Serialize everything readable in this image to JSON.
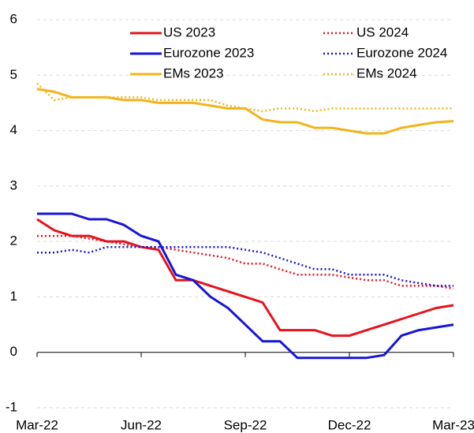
{
  "chart_data": {
    "type": "line",
    "categories": [
      "Mar-22",
      null,
      null,
      null,
      null,
      null,
      "Jun-22",
      null,
      null,
      null,
      null,
      null,
      "Sep-22",
      null,
      null,
      null,
      null,
      null,
      "Dec-22",
      null,
      null,
      null,
      null,
      null,
      "Mar-23"
    ],
    "series": [
      {
        "name": "US 2023",
        "color": "#e5131b",
        "line_style": "solid",
        "values": [
          2.4,
          2.2,
          2.1,
          2.1,
          2.0,
          2.0,
          1.9,
          1.85,
          1.3,
          1.3,
          1.2,
          1.1,
          1.0,
          0.9,
          0.4,
          0.4,
          0.4,
          0.3,
          0.3,
          0.4,
          0.5,
          0.6,
          0.7,
          0.8,
          0.85
        ]
      },
      {
        "name": "US 2024",
        "color": "#e5131b",
        "line_style": "dotted",
        "values": [
          2.1,
          2.1,
          2.1,
          2.05,
          2.0,
          1.95,
          1.9,
          1.9,
          1.85,
          1.8,
          1.75,
          1.7,
          1.6,
          1.6,
          1.5,
          1.4,
          1.4,
          1.4,
          1.35,
          1.3,
          1.3,
          1.2,
          1.2,
          1.2,
          1.15
        ]
      },
      {
        "name": "Eurozone 2023",
        "color": "#1515d6",
        "line_style": "solid",
        "values": [
          2.5,
          2.5,
          2.5,
          2.4,
          2.4,
          2.3,
          2.1,
          2.0,
          1.4,
          1.3,
          1.0,
          0.8,
          0.5,
          0.2,
          0.2,
          -0.1,
          -0.1,
          -0.1,
          -0.1,
          -0.1,
          -0.05,
          0.3,
          0.4,
          0.45,
          0.5
        ]
      },
      {
        "name": "Eurozone 2024",
        "color": "#1515d6",
        "line_style": "dotted",
        "values": [
          1.8,
          1.8,
          1.85,
          1.8,
          1.9,
          1.9,
          1.9,
          1.9,
          1.9,
          1.9,
          1.9,
          1.9,
          1.85,
          1.8,
          1.7,
          1.6,
          1.5,
          1.5,
          1.4,
          1.4,
          1.4,
          1.3,
          1.25,
          1.2,
          1.2
        ]
      },
      {
        "name": "EMs 2023",
        "color": "#f2b41c",
        "line_style": "solid",
        "values": [
          4.75,
          4.7,
          4.6,
          4.6,
          4.6,
          4.55,
          4.55,
          4.5,
          4.5,
          4.5,
          4.45,
          4.4,
          4.4,
          4.2,
          4.15,
          4.15,
          4.05,
          4.05,
          4.0,
          3.95,
          3.95,
          4.05,
          4.1,
          4.15,
          4.17
        ]
      },
      {
        "name": "EMs 2024",
        "color": "#f2b41c",
        "line_style": "dotted",
        "values": [
          4.85,
          4.55,
          4.6,
          4.6,
          4.6,
          4.6,
          4.6,
          4.55,
          4.55,
          4.55,
          4.55,
          4.45,
          4.4,
          4.35,
          4.4,
          4.4,
          4.35,
          4.4,
          4.4,
          4.4,
          4.4,
          4.4,
          4.4,
          4.4,
          4.4
        ]
      }
    ],
    "ylim": [
      -1,
      6
    ],
    "yticks": [
      -1,
      0,
      1,
      2,
      3,
      4,
      5,
      6
    ],
    "grid": true,
    "legend": "top"
  }
}
